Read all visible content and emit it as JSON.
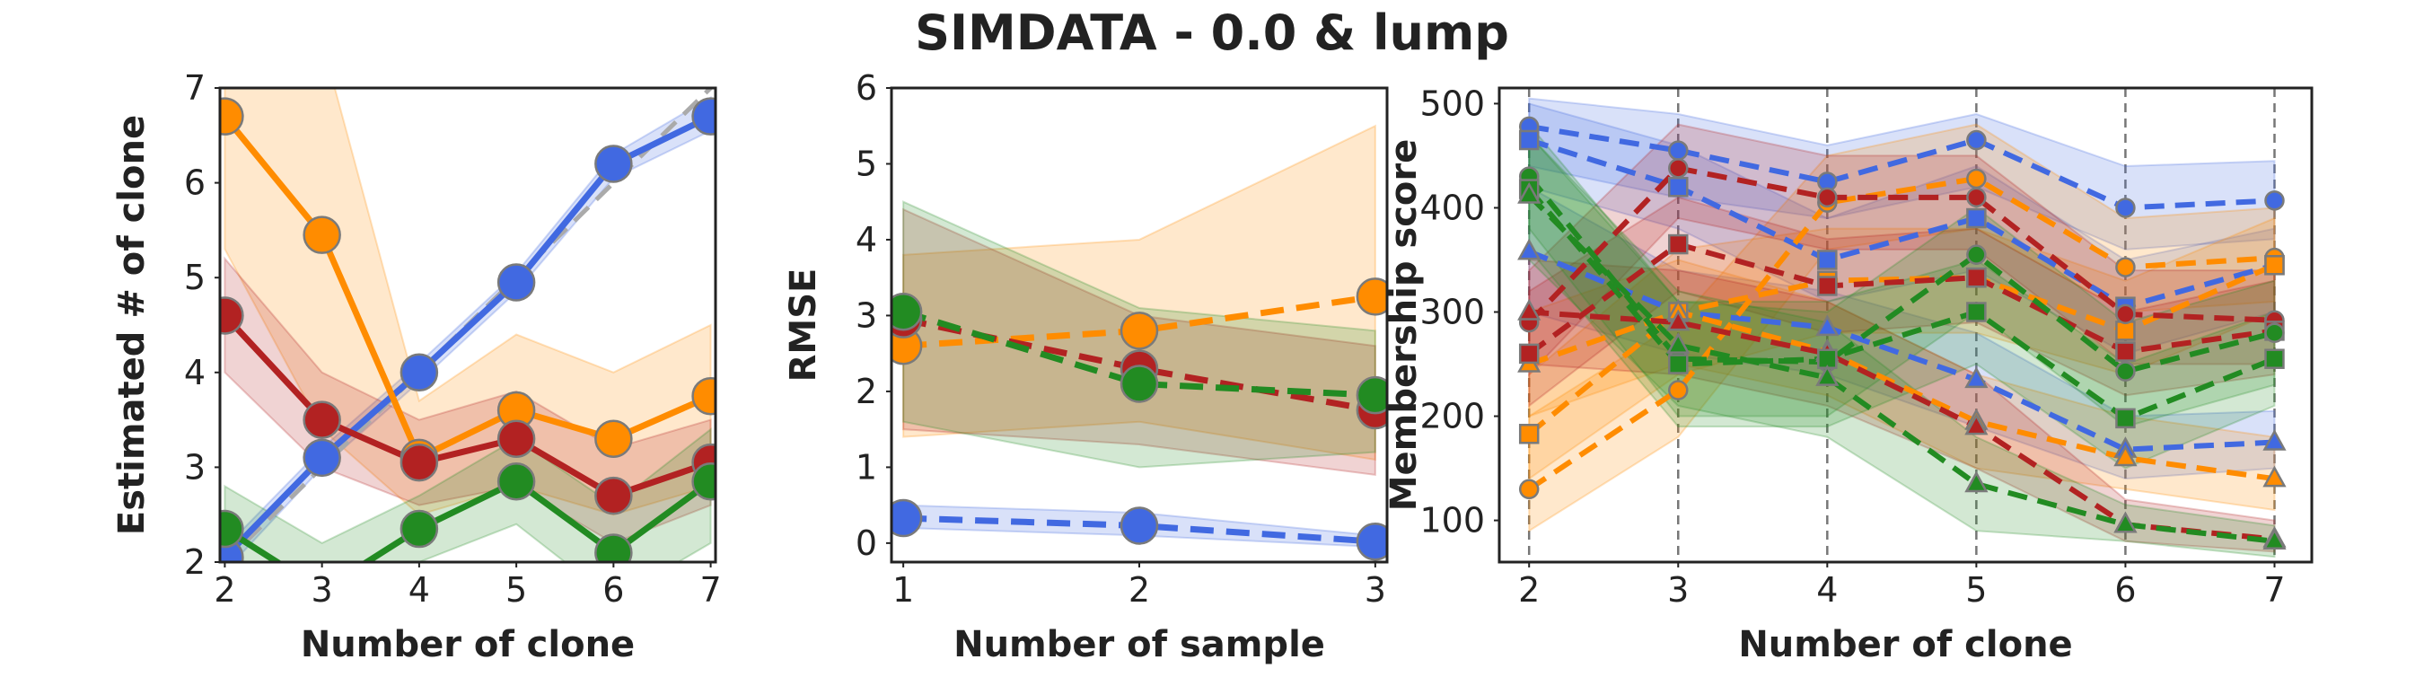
{
  "title": "SIMDATA - 0.0 & lump",
  "colors": {
    "blue": "#4169E1",
    "orange": "#FF8C00",
    "red": "#B22222",
    "green": "#228B22",
    "frame": "#222222",
    "marker_edge": "#7a7a7a",
    "vline": "#777777",
    "ideal": "#aaaaaa"
  },
  "chart_data": [
    {
      "type": "line",
      "xlabel": "Number of clone",
      "ylabel": "Estimated # of clone",
      "xlim": [
        1.95,
        7.05
      ],
      "ylim": [
        2,
        7
      ],
      "xticks": [
        2,
        3,
        4,
        5,
        6,
        7
      ],
      "yticks": [
        2,
        3,
        4,
        5,
        6,
        7
      ],
      "reference_line": {
        "x": [
          2,
          7
        ],
        "y": [
          2,
          7
        ],
        "style": "dashed",
        "color": "ideal"
      },
      "series": [
        {
          "color": "blue",
          "x": [
            2,
            3,
            4,
            5,
            6,
            7
          ],
          "y": [
            2.05,
            3.1,
            4.0,
            4.95,
            6.2,
            6.7
          ],
          "band_low": [
            1.9,
            3.0,
            3.9,
            4.85,
            6.05,
            6.55
          ],
          "band_high": [
            2.15,
            3.2,
            4.1,
            5.05,
            6.3,
            6.9
          ]
        },
        {
          "color": "orange",
          "x": [
            2,
            3,
            4,
            5,
            6,
            7
          ],
          "y": [
            6.7,
            5.45,
            3.1,
            3.6,
            3.3,
            3.75
          ],
          "band_low": [
            5.3,
            3.4,
            2.5,
            2.8,
            2.5,
            2.8
          ],
          "band_high": [
            8.0,
            7.5,
            3.7,
            4.4,
            4.0,
            4.5
          ]
        },
        {
          "color": "red",
          "x": [
            2,
            3,
            4,
            5,
            6,
            7
          ],
          "y": [
            4.6,
            3.5,
            3.05,
            3.3,
            2.7,
            3.05
          ],
          "band_low": [
            4.0,
            3.0,
            2.6,
            2.8,
            2.2,
            2.6
          ],
          "band_high": [
            5.2,
            4.0,
            3.5,
            3.8,
            3.2,
            3.5
          ]
        },
        {
          "color": "green",
          "x": [
            2,
            3,
            4,
            5,
            6,
            7
          ],
          "y": [
            2.35,
            1.7,
            2.35,
            2.85,
            2.1,
            2.85
          ],
          "band_low": [
            1.8,
            1.1,
            2.0,
            2.4,
            1.6,
            2.2
          ],
          "band_high": [
            2.8,
            2.2,
            2.7,
            3.3,
            2.6,
            3.4
          ]
        }
      ]
    },
    {
      "type": "line",
      "xlabel": "Number of sample",
      "ylabel": "RMSE",
      "xlim": [
        0.95,
        3.05
      ],
      "ylim": [
        -0.25,
        6
      ],
      "xticks": [
        1,
        2,
        3
      ],
      "yticks": [
        0,
        1,
        2,
        3,
        4,
        5,
        6
      ],
      "series": [
        {
          "color": "blue",
          "x": [
            1,
            2,
            3
          ],
          "y": [
            0.33,
            0.23,
            0.02
          ],
          "band_low": [
            0.2,
            0.1,
            -0.05
          ],
          "band_high": [
            0.5,
            0.4,
            0.1
          ]
        },
        {
          "color": "orange",
          "x": [
            1,
            2,
            3
          ],
          "y": [
            2.6,
            2.8,
            3.25
          ],
          "band_low": [
            1.4,
            1.6,
            1.1
          ],
          "band_high": [
            3.8,
            4.0,
            5.5
          ]
        },
        {
          "color": "red",
          "x": [
            1,
            2,
            3
          ],
          "y": [
            2.95,
            2.3,
            1.75
          ],
          "band_low": [
            1.5,
            1.3,
            0.9
          ],
          "band_high": [
            4.4,
            3.0,
            2.6
          ]
        },
        {
          "color": "green",
          "x": [
            1,
            2,
            3
          ],
          "y": [
            3.05,
            2.1,
            1.95
          ],
          "band_low": [
            1.6,
            1.0,
            1.2
          ],
          "band_high": [
            4.5,
            3.1,
            2.8
          ]
        }
      ]
    },
    {
      "type": "line",
      "xlabel": "Number of clone",
      "ylabel": "Membership score",
      "xlim": [
        1.8,
        7.25
      ],
      "ylim": [
        60,
        515
      ],
      "xticks": [
        2,
        3,
        4,
        5,
        6,
        7
      ],
      "yticks": [
        100,
        200,
        300,
        400,
        500
      ],
      "vlines": [
        2,
        3,
        4,
        5,
        6,
        7
      ],
      "series": [
        {
          "color": "blue",
          "marker": "circle",
          "x": [
            2,
            3,
            4,
            5,
            6,
            7
          ],
          "y": [
            478,
            455,
            425,
            465,
            400,
            407
          ],
          "band_low": [
            440,
            410,
            390,
            420,
            360,
            370
          ],
          "band_high": [
            505,
            490,
            460,
            490,
            440,
            445
          ]
        },
        {
          "color": "blue",
          "marker": "square",
          "x": [
            2,
            3,
            4,
            5,
            6,
            7
          ],
          "y": [
            465,
            420,
            350,
            390,
            305,
            345
          ],
          "band_low": [
            420,
            380,
            310,
            340,
            260,
            300
          ],
          "band_high": [
            500,
            460,
            390,
            440,
            350,
            380
          ]
        },
        {
          "color": "blue",
          "marker": "triangle",
          "x": [
            2,
            3,
            4,
            5,
            6,
            7
          ],
          "y": [
            358,
            300,
            285,
            235,
            168,
            175
          ],
          "band_low": [
            300,
            260,
            240,
            190,
            140,
            150
          ],
          "band_high": [
            420,
            340,
            320,
            280,
            200,
            205
          ]
        },
        {
          "color": "orange",
          "marker": "circle",
          "x": [
            2,
            3,
            4,
            5,
            6,
            7
          ],
          "y": [
            130,
            225,
            405,
            428,
            343,
            352
          ],
          "band_low": [
            90,
            180,
            360,
            380,
            300,
            310
          ],
          "band_high": [
            200,
            290,
            450,
            480,
            390,
            400
          ]
        },
        {
          "color": "orange",
          "marker": "square",
          "x": [
            2,
            3,
            4,
            5,
            6,
            7
          ],
          "y": [
            183,
            300,
            330,
            333,
            282,
            345
          ],
          "band_low": [
            140,
            240,
            280,
            280,
            240,
            300
          ],
          "band_high": [
            240,
            360,
            380,
            380,
            330,
            390
          ]
        },
        {
          "color": "orange",
          "marker": "triangle",
          "x": [
            2,
            3,
            4,
            5,
            6,
            7
          ],
          "y": [
            250,
            300,
            262,
            195,
            160,
            140
          ],
          "band_low": [
            200,
            250,
            220,
            150,
            130,
            110
          ],
          "band_high": [
            300,
            350,
            310,
            240,
            200,
            180
          ]
        },
        {
          "color": "red",
          "marker": "circle",
          "x": [
            2,
            3,
            4,
            5,
            6,
            7
          ],
          "y": [
            290,
            438,
            410,
            410,
            298,
            292
          ],
          "band_low": [
            240,
            390,
            360,
            360,
            250,
            250
          ],
          "band_high": [
            340,
            480,
            450,
            450,
            340,
            340
          ]
        },
        {
          "color": "red",
          "marker": "square",
          "x": [
            2,
            3,
            4,
            5,
            6,
            7
          ],
          "y": [
            260,
            365,
            325,
            333,
            262,
            282
          ],
          "band_low": [
            210,
            320,
            280,
            290,
            220,
            240
          ],
          "band_high": [
            320,
            410,
            370,
            380,
            300,
            330
          ]
        },
        {
          "color": "red",
          "marker": "triangle",
          "x": [
            2,
            3,
            4,
            5,
            6,
            7
          ],
          "y": [
            300,
            290,
            260,
            190,
            96,
            82
          ],
          "band_low": [
            250,
            240,
            210,
            150,
            80,
            70
          ],
          "band_high": [
            350,
            340,
            310,
            240,
            120,
            100
          ]
        },
        {
          "color": "green",
          "marker": "circle",
          "x": [
            2,
            3,
            4,
            5,
            6,
            7
          ],
          "y": [
            430,
            255,
            252,
            355,
            243,
            280
          ],
          "band_low": [
            380,
            200,
            200,
            300,
            190,
            230
          ],
          "band_high": [
            480,
            310,
            300,
            400,
            290,
            330
          ]
        },
        {
          "color": "green",
          "marker": "square",
          "x": [
            2,
            3,
            4,
            5,
            6,
            7
          ],
          "y": [
            418,
            250,
            255,
            300,
            198,
            255
          ],
          "band_low": [
            360,
            190,
            190,
            250,
            150,
            210
          ],
          "band_high": [
            470,
            310,
            310,
            350,
            250,
            300
          ]
        },
        {
          "color": "green",
          "marker": "triangle",
          "x": [
            2,
            3,
            4,
            5,
            6,
            7
          ],
          "y": [
            412,
            268,
            237,
            135,
            96,
            80
          ],
          "band_low": [
            350,
            210,
            180,
            90,
            80,
            65
          ],
          "band_high": [
            470,
            320,
            290,
            180,
            115,
            95
          ]
        }
      ]
    }
  ]
}
